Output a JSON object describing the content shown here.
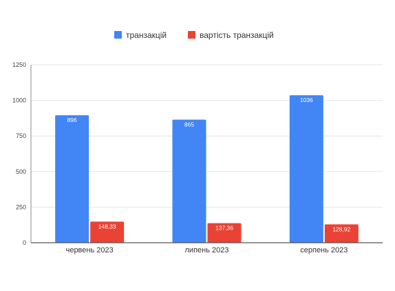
{
  "chart_data": {
    "type": "bar",
    "categories": [
      "червень 2023",
      "липень 2023",
      "серпень 2023"
    ],
    "series": [
      {
        "name": "транзакцій",
        "color": "#4285f4",
        "values": [
          896,
          865,
          1036
        ],
        "labels": [
          "896",
          "865",
          "1036"
        ]
      },
      {
        "name": "вартість транзакцій",
        "color": "#ea4335",
        "values": [
          148.33,
          137.36,
          128.92
        ],
        "labels": [
          "148,33",
          "137,36",
          "128,92"
        ]
      }
    ],
    "ylim": [
      0,
      1250
    ],
    "yticks": [
      0,
      250,
      500,
      750,
      1000,
      1250
    ],
    "grid": true,
    "legend_position": "top"
  }
}
